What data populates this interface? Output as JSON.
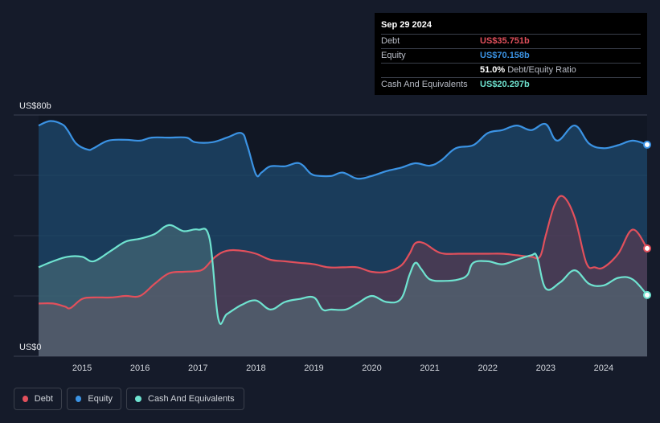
{
  "tooltip": {
    "date": "Sep 29 2024",
    "rows": [
      {
        "label": "Debt",
        "value": "US$35.751b",
        "color": "#e2505c"
      },
      {
        "label": "Equity",
        "value": "US$70.158b",
        "color": "#3b93e4"
      },
      {
        "label": "",
        "value": "51.0%",
        "suffix": "Debt/Equity Ratio",
        "color": "#ffffff"
      },
      {
        "label": "Cash And Equivalents",
        "value": "US$20.297b",
        "color": "#6fe3d0"
      }
    ]
  },
  "legend": [
    {
      "label": "Debt",
      "color": "#e2505c"
    },
    {
      "label": "Equity",
      "color": "#3b93e4"
    },
    {
      "label": "Cash And Equivalents",
      "color": "#6fe3d0"
    }
  ],
  "chart_data": {
    "type": "area",
    "y_max_label": "US$80b",
    "y_min_label": "US$0",
    "ylim": [
      0,
      80
    ],
    "xlim": [
      2014.25,
      2024.75
    ],
    "x_ticks": [
      "2015",
      "2016",
      "2017",
      "2018",
      "2019",
      "2020",
      "2021",
      "2022",
      "2023",
      "2024"
    ],
    "grid": true,
    "series": [
      {
        "name": "Equity",
        "color": "#3b93e4",
        "x": [
          2014.25,
          2014.45,
          2014.65,
          2014.75,
          2014.9,
          2015.1,
          2015.2,
          2015.45,
          2015.75,
          2016.0,
          2016.2,
          2016.5,
          2016.8,
          2016.95,
          2017.25,
          2017.5,
          2017.75,
          2017.85,
          2018.0,
          2018.1,
          2018.25,
          2018.5,
          2018.75,
          2018.95,
          2019.1,
          2019.3,
          2019.5,
          2019.75,
          2020.0,
          2020.25,
          2020.5,
          2020.75,
          2021.0,
          2021.2,
          2021.45,
          2021.75,
          2022.0,
          2022.25,
          2022.5,
          2022.75,
          2023.0,
          2023.2,
          2023.5,
          2023.75,
          2024.0,
          2024.25,
          2024.5,
          2024.75
        ],
        "values": [
          76.5,
          78.0,
          77.0,
          75.0,
          70.5,
          68.5,
          69.0,
          71.5,
          71.8,
          71.5,
          72.5,
          72.5,
          72.5,
          71.0,
          71.0,
          72.5,
          74.0,
          70.0,
          60.3,
          61.0,
          63.0,
          63.0,
          64.0,
          60.5,
          59.8,
          59.8,
          60.9,
          58.9,
          59.8,
          61.4,
          62.5,
          64.0,
          63.2,
          65.0,
          69.0,
          70.0,
          74.0,
          75.0,
          76.5,
          75.0,
          77.0,
          71.5,
          76.5,
          70.5,
          69.0,
          70.0,
          71.5,
          70.158
        ]
      },
      {
        "name": "Debt",
        "color": "#e2505c",
        "x": [
          2014.25,
          2014.5,
          2014.7,
          2014.8,
          2015.0,
          2015.2,
          2015.5,
          2015.75,
          2016.0,
          2016.25,
          2016.5,
          2016.75,
          2016.95,
          2017.1,
          2017.3,
          2017.5,
          2017.75,
          2018.0,
          2018.25,
          2018.5,
          2018.75,
          2019.0,
          2019.25,
          2019.5,
          2019.75,
          2020.0,
          2020.25,
          2020.5,
          2020.65,
          2020.75,
          2020.9,
          2021.1,
          2021.25,
          2021.5,
          2021.75,
          2022.0,
          2022.25,
          2022.5,
          2022.75,
          2022.9,
          2023.0,
          2023.15,
          2023.3,
          2023.5,
          2023.7,
          2023.85,
          2024.0,
          2024.25,
          2024.5,
          2024.75
        ],
        "values": [
          17.5,
          17.5,
          16.5,
          16.0,
          19.0,
          19.5,
          19.5,
          20.0,
          20.0,
          24.0,
          27.5,
          28.0,
          28.2,
          29.0,
          33.0,
          35.0,
          35.0,
          34.0,
          32.0,
          31.5,
          31.0,
          30.5,
          29.5,
          29.5,
          29.5,
          28.0,
          28.0,
          30.0,
          34.0,
          37.5,
          37.5,
          35.0,
          34.0,
          34.0,
          34.0,
          34.0,
          34.0,
          33.5,
          33.0,
          33.0,
          40.0,
          50.0,
          53.0,
          46.0,
          31.0,
          29.5,
          29.5,
          34.0,
          42.0,
          35.751
        ]
      },
      {
        "name": "Cash And Equivalents",
        "color": "#6fe3d0",
        "x": [
          2014.25,
          2014.5,
          2014.75,
          2015.0,
          2015.2,
          2015.5,
          2015.75,
          2016.0,
          2016.25,
          2016.5,
          2016.75,
          2017.0,
          2017.2,
          2017.35,
          2017.5,
          2017.75,
          2018.0,
          2018.25,
          2018.5,
          2018.75,
          2019.0,
          2019.15,
          2019.3,
          2019.55,
          2019.75,
          2020.0,
          2020.25,
          2020.5,
          2020.65,
          2020.75,
          2020.85,
          2021.0,
          2021.25,
          2021.5,
          2021.65,
          2021.75,
          2022.0,
          2022.25,
          2022.5,
          2022.75,
          2022.85,
          2023.0,
          2023.25,
          2023.5,
          2023.75,
          2024.0,
          2024.25,
          2024.5,
          2024.75
        ],
        "values": [
          29.5,
          31.5,
          33.0,
          33.0,
          31.5,
          35.0,
          38.0,
          39.0,
          40.5,
          43.5,
          41.5,
          42.0,
          39.0,
          12.5,
          14.0,
          17.0,
          18.5,
          15.5,
          18.0,
          19.0,
          19.5,
          15.5,
          15.5,
          15.5,
          17.5,
          20.0,
          18.0,
          19.0,
          27.0,
          31.0,
          29.0,
          25.5,
          25.0,
          25.5,
          27.0,
          31.0,
          31.5,
          30.5,
          32.0,
          33.5,
          33.0,
          22.5,
          24.5,
          28.5,
          24.0,
          23.5,
          26.0,
          25.5,
          20.297
        ]
      }
    ]
  }
}
